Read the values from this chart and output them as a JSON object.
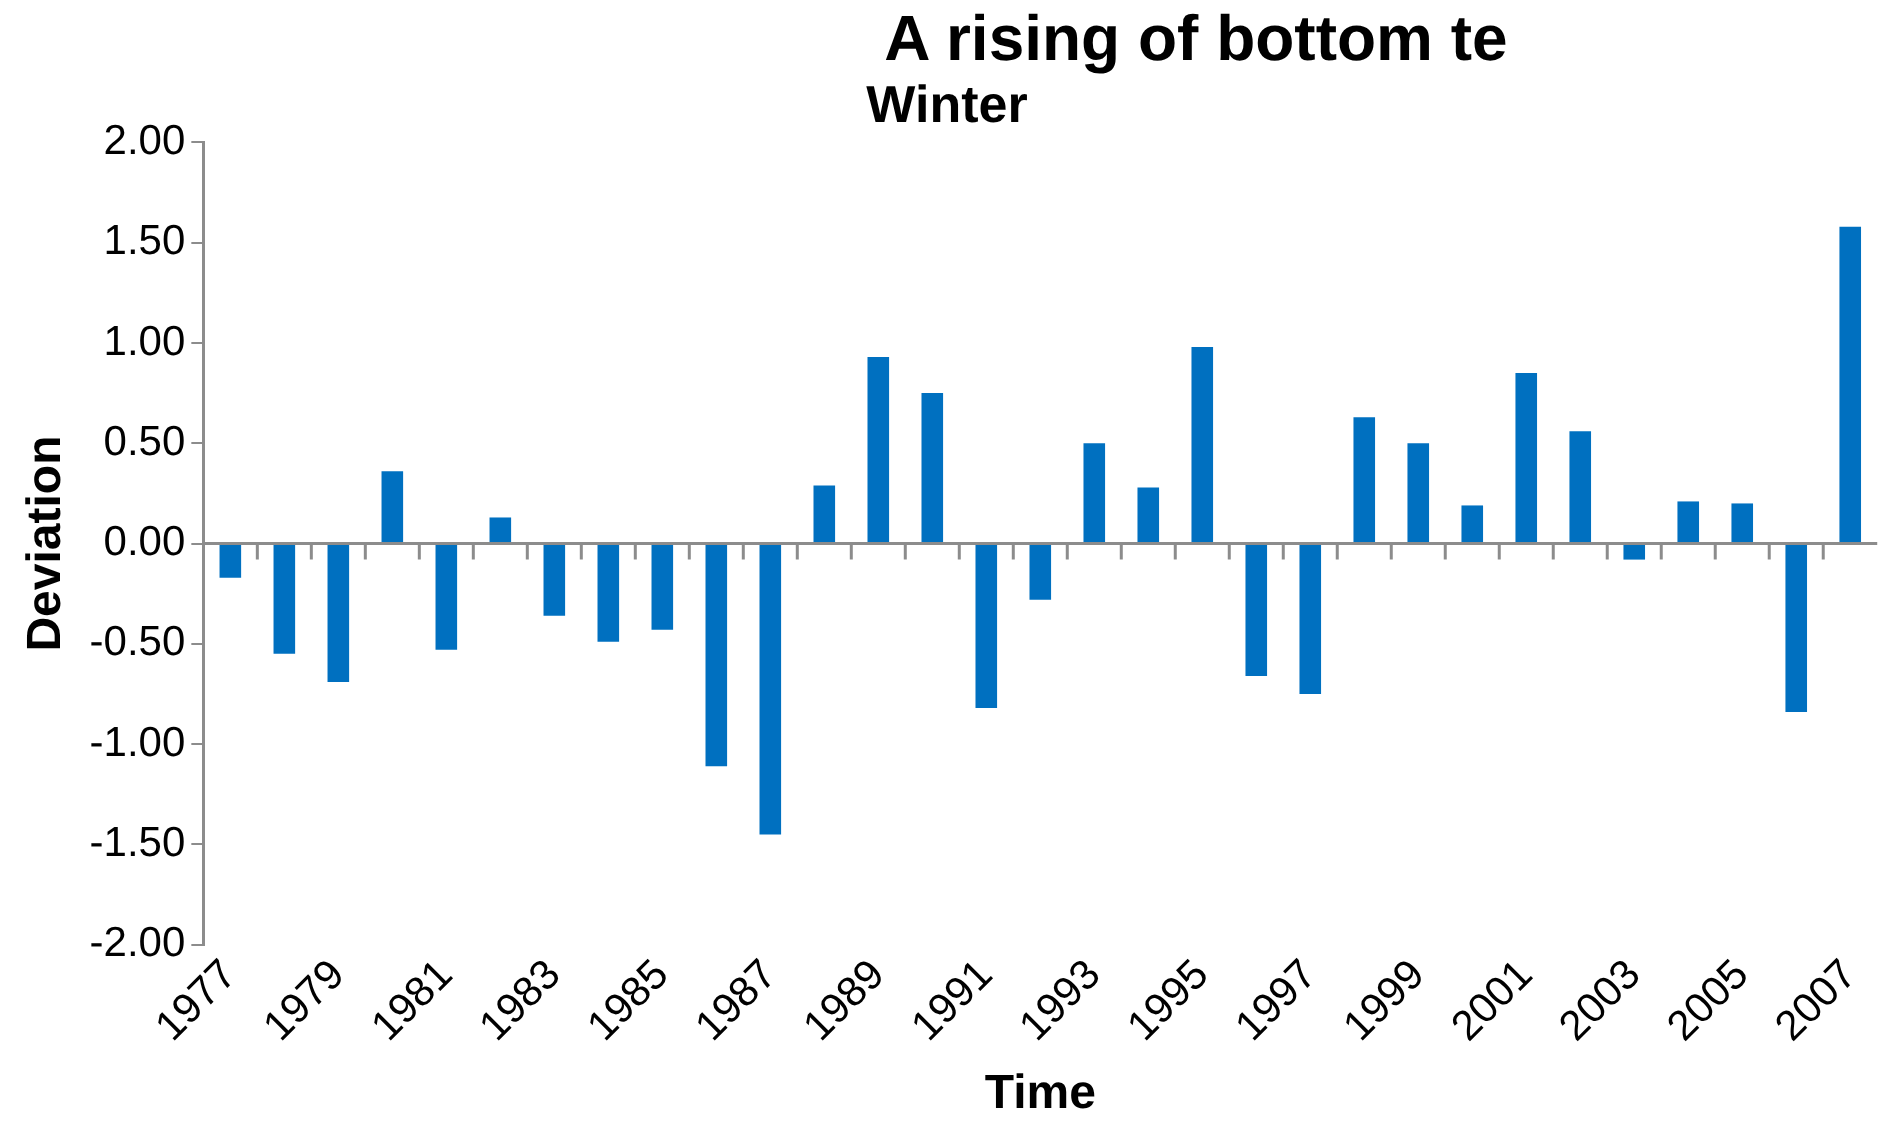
{
  "chart_data": {
    "type": "bar",
    "title": "Winter",
    "xlabel": "Time",
    "ylabel": "Deviation",
    "annotations": [
      "A rising of bottom te"
    ],
    "categories": [
      "1977",
      null,
      "1979",
      null,
      "1981",
      null,
      "1983",
      null,
      "1985",
      null,
      "1987",
      null,
      "1989",
      null,
      "1991",
      null,
      "1993",
      null,
      "1995",
      null,
      "1997",
      null,
      "1999",
      null,
      "2001",
      null,
      "2003",
      null,
      "2005",
      null,
      "2007"
    ],
    "values": [
      -0.17,
      -0.55,
      -0.69,
      0.36,
      -0.53,
      0.13,
      -0.36,
      -0.49,
      -0.43,
      -1.11,
      -1.45,
      0.29,
      0.93,
      0.75,
      -0.82,
      -0.28,
      0.5,
      0.28,
      0.98,
      -0.66,
      -0.75,
      0.63,
      0.5,
      0.19,
      0.85,
      0.56,
      -0.08,
      0.21,
      0.2,
      -0.84,
      1.58
    ],
    "color": "#0070c0",
    "ylim": [
      -2,
      2
    ],
    "yticks": [
      {
        "value": -2,
        "label": "-2.00"
      },
      {
        "value": -1.5,
        "label": "-1.50"
      },
      {
        "value": -1,
        "label": "-1.00"
      },
      {
        "value": -0.5,
        "label": "-0.50"
      },
      {
        "value": 0,
        "label": "0.00"
      },
      {
        "value": 0.5,
        "label": "0.50"
      },
      {
        "value": 1,
        "label": "1.00"
      },
      {
        "value": 1.5,
        "label": "1.50"
      },
      {
        "value": 2,
        "label": "2.00"
      }
    ],
    "legend": false
  }
}
